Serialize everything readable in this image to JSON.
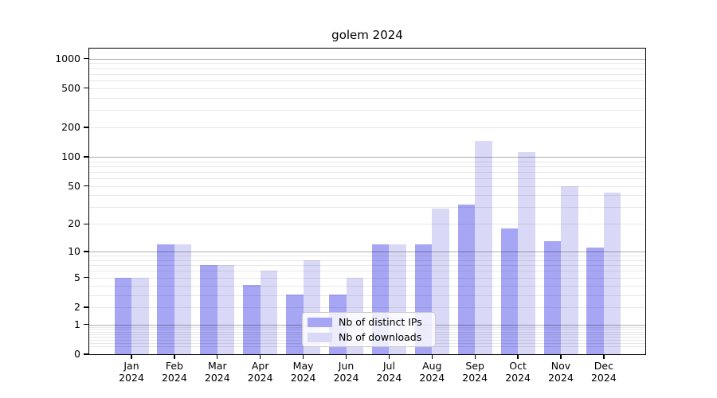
{
  "chart_data": {
    "type": "bar",
    "title": "golem 2024",
    "xlabel": "",
    "ylabel": "",
    "year": "2024",
    "categories": [
      "Jan",
      "Feb",
      "Mar",
      "Apr",
      "May",
      "Jun",
      "Jul",
      "Aug",
      "Sep",
      "Oct",
      "Nov",
      "Dec"
    ],
    "series": [
      {
        "name": "Nb of distinct IPs",
        "color": "#a6a6f5",
        "values": [
          5,
          12,
          7,
          4,
          3,
          3,
          12,
          12,
          32,
          18,
          13,
          11
        ]
      },
      {
        "name": "Nb of downloads",
        "color": "#d9d9f7",
        "values": [
          5,
          12,
          7,
          6,
          8,
          5,
          12,
          29,
          145,
          112,
          50,
          43
        ]
      }
    ],
    "yscale": "log1p",
    "ylim": [
      0,
      1264
    ],
    "yticks": [
      0,
      1,
      2,
      5,
      10,
      20,
      50,
      100,
      200,
      500,
      1000
    ],
    "grid_major": [
      1,
      10,
      100,
      1000
    ],
    "grid": "on",
    "legend_position": "inside lower center",
    "colors": {
      "spine": "#000000",
      "grid_major": "#adadad",
      "grid_minor": "#e8e8e8",
      "background": "#ffffff"
    }
  }
}
